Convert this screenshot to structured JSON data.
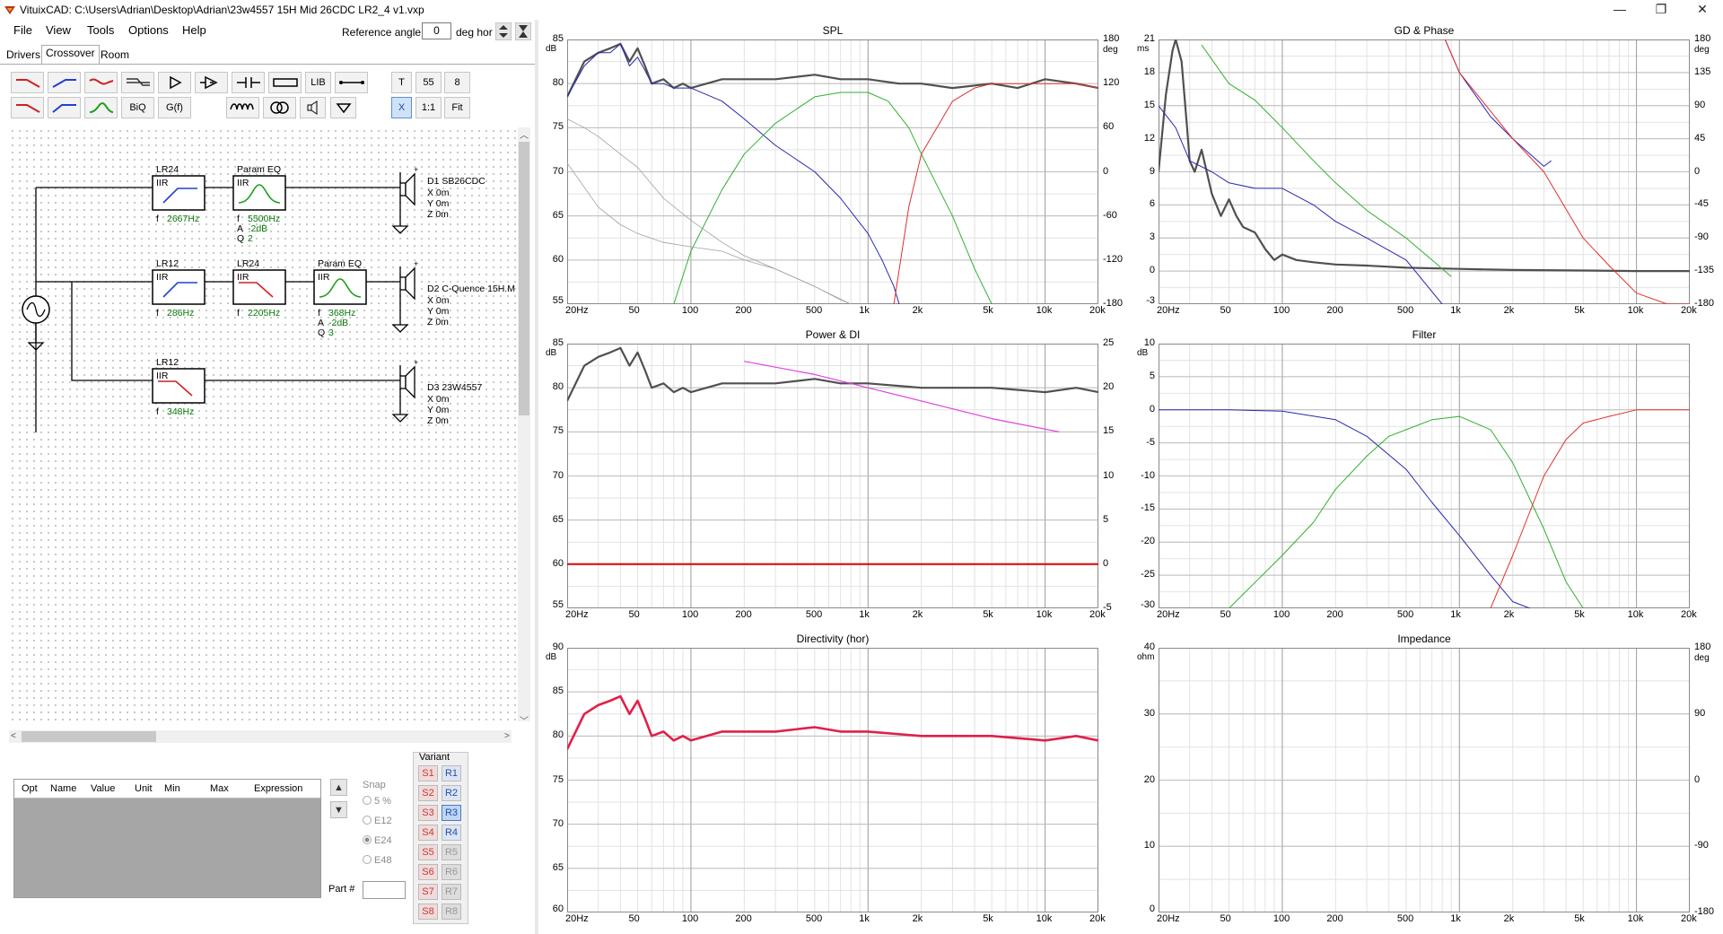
{
  "window": {
    "title": "VituixCAD: C:\\Users\\Adrian\\Desktop\\Adrian\\23w4557 15H Mid 26CDC LR2_4 v1.vxp",
    "minimize": "—",
    "maximize": "❐",
    "close": "✕"
  },
  "menu": [
    "File",
    "View",
    "Tools",
    "Options",
    "Help"
  ],
  "reference": {
    "label": "Reference angle",
    "value": "0",
    "unit": "deg hor"
  },
  "tabs": [
    "Drivers",
    "Crossover",
    "Room"
  ],
  "toolbar": {
    "lib": "LIB",
    "t": "T",
    "n55": "55",
    "n8": "8",
    "biq": "BiQ",
    "gf": "G(f)",
    "x": "X",
    "one": "1:1",
    "fit": "Fit"
  },
  "schematic": {
    "blocks": [
      {
        "title": "LR24",
        "tag": "IIR",
        "params": [
          [
            "f",
            "2667Hz"
          ]
        ]
      },
      {
        "title": "Param EQ",
        "tag": "IIR",
        "params": [
          [
            "f",
            "5500Hz"
          ],
          [
            "A",
            "-2dB"
          ],
          [
            "Q",
            "2"
          ]
        ]
      },
      {
        "title": "LR12",
        "tag": "IIR",
        "params": [
          [
            "f",
            "286Hz"
          ]
        ]
      },
      {
        "title": "LR24",
        "tag": "IIR",
        "params": [
          [
            "f",
            "2205Hz"
          ]
        ]
      },
      {
        "title": "Param EQ",
        "tag": "IIR",
        "params": [
          [
            "f",
            "368Hz"
          ],
          [
            "A",
            "-2dB"
          ],
          [
            "Q",
            "3"
          ]
        ]
      },
      {
        "title": "LR12",
        "tag": "IIR",
        "params": [
          [
            "f",
            "348Hz"
          ]
        ]
      }
    ],
    "drivers": [
      {
        "name": "D1 SB26CDC",
        "x": "X 0m",
        "y": "Y 0m",
        "z": "Z 0m"
      },
      {
        "name": "D2 C-Quence 15H.M",
        "x": "X 0m",
        "y": "Y 0m",
        "z": "Z 0m"
      },
      {
        "name": "D3 23W4557",
        "x": "X 0m",
        "y": "Y 0m",
        "z": "Z 0m"
      }
    ]
  },
  "opt_table": {
    "headers": [
      "Opt",
      "Name",
      "Value",
      "Unit",
      "Min",
      "Max",
      "Expression"
    ]
  },
  "snap": {
    "label": "Snap",
    "options": [
      "5 %",
      "E12",
      "E24",
      "E48"
    ],
    "selected": "E24"
  },
  "part": {
    "label": "Part #"
  },
  "variant": {
    "label": "Variant",
    "s": [
      "S1",
      "S2",
      "S3",
      "S4",
      "S5",
      "S6",
      "S7",
      "S8"
    ],
    "r": [
      "R1",
      "R2",
      "R3",
      "R4",
      "R5",
      "R6",
      "R7",
      "R8"
    ],
    "r_selected": "R3"
  },
  "colors": {
    "tweeter": "#e03030",
    "mid": "#30b030",
    "woofer": "#2828b0",
    "total": "#505050",
    "offaxis": "#a0a0a0",
    "di": "#e040e0",
    "power_di_flat": "#e00000",
    "directivity": "#e0204a"
  },
  "freq_ticks": [
    "20Hz",
    "50",
    "100",
    "200",
    "500",
    "1k",
    "2k",
    "5k",
    "10k",
    "20k"
  ],
  "chart_data": [
    {
      "type": "line",
      "title": "SPL",
      "xlabel": "",
      "ylabel": "dB",
      "y2label": "deg",
      "xscale": "log",
      "xlim": [
        20,
        20000
      ],
      "ylim": [
        55,
        85
      ],
      "y2lim": [
        -180,
        180
      ],
      "yticks": [
        "85",
        "80",
        "75",
        "70",
        "65",
        "60",
        "55"
      ],
      "y2ticks": [
        "180",
        "120",
        "60",
        "0",
        "-60",
        "-120",
        "-180"
      ],
      "series": [
        {
          "x": [
            20,
            25,
            30,
            35,
            40,
            45,
            50,
            55,
            60,
            70,
            80,
            90,
            100,
            150,
            200,
            300,
            500,
            700,
            1000,
            1500,
            2000,
            3000,
            5000,
            7000,
            10000,
            15000,
            20000
          ],
          "y": [
            78.5,
            82.5,
            83.5,
            84,
            84.5,
            82.5,
            84,
            82,
            80,
            80.5,
            79.5,
            80,
            79.5,
            80.5,
            80.5,
            80.5,
            81,
            80.5,
            80.5,
            80,
            80,
            79.5,
            80,
            79.5,
            80.5,
            80,
            79.5
          ]
        },
        {
          "x": [
            20,
            25,
            30,
            35,
            40,
            45,
            50,
            55,
            60,
            70,
            80,
            100,
            150,
            200,
            300,
            500,
            700,
            1000,
            1200,
            1400,
            1500
          ],
          "y": [
            78.5,
            82,
            83.5,
            83.5,
            84.5,
            82,
            83,
            81.5,
            80,
            80,
            79.5,
            79.5,
            78,
            76,
            73,
            70,
            67,
            63,
            60,
            57,
            55
          ]
        },
        {
          "x": [
            80,
            100,
            150,
            200,
            300,
            500,
            700,
            1000,
            1300,
            1700,
            2000,
            3000,
            4000,
            5000
          ],
          "y": [
            55,
            61,
            68,
            72,
            75.5,
            78.5,
            79,
            79,
            78,
            75,
            72,
            65,
            59,
            55
          ]
        },
        {
          "x": [
            1400,
            1700,
            2000,
            3000,
            4000,
            5000,
            7000,
            10000,
            15000,
            20000
          ],
          "y": [
            55,
            66,
            72,
            78,
            79.5,
            80,
            80,
            80,
            80,
            79.5
          ]
        },
        {
          "x": [
            20,
            25,
            30,
            40,
            50,
            70,
            100,
            150,
            200,
            300,
            500,
            700,
            800
          ],
          "y": [
            76,
            75,
            74,
            72,
            70.5,
            67,
            64.5,
            62,
            60.5,
            59,
            57,
            55.5,
            55
          ]
        },
        {
          "x": [
            20,
            30,
            40,
            50,
            70,
            100,
            150,
            200,
            300,
            500,
            800
          ],
          "y": [
            71,
            66,
            64,
            63,
            62,
            61.5,
            61,
            60,
            59,
            57,
            55
          ]
        }
      ]
    },
    {
      "type": "line",
      "title": "GD & Phase",
      "xlabel": "",
      "ylabel": "ms",
      "y2label": "deg",
      "xscale": "log",
      "xlim": [
        20,
        20000
      ],
      "ylim": [
        -3,
        21
      ],
      "y2lim": [
        -180,
        180
      ],
      "yticks": [
        "21",
        "18",
        "15",
        "12",
        "9",
        "6",
        "3",
        "0",
        "-3"
      ],
      "y2ticks": [
        "180",
        "135",
        "90",
        "45",
        "0",
        "-45",
        "-90",
        "-135",
        "-180"
      ],
      "series": [
        {
          "x": [
            20,
            22,
            24,
            25,
            27,
            29,
            30,
            32,
            35,
            40,
            45,
            50,
            55,
            60,
            70,
            80,
            90,
            100,
            120,
            150,
            200,
            300,
            500,
            1000,
            2000,
            5000,
            10000,
            20000
          ],
          "y": [
            9,
            16,
            20,
            21,
            19,
            13,
            10,
            9,
            11,
            7,
            5,
            6.5,
            5,
            4,
            3.5,
            2,
            1,
            1.5,
            1,
            0.8,
            0.6,
            0.5,
            0.3,
            0.2,
            0.1,
            0.05,
            0,
            0
          ]
        },
        {
          "x": [
            20,
            25,
            30,
            40,
            50,
            70,
            100,
            150,
            200,
            300,
            500,
            800
          ],
          "y": [
            15,
            13,
            10,
            9,
            8,
            7.5,
            7.5,
            6,
            4.5,
            3,
            1,
            -3
          ]
        },
        {
          "x": [
            35,
            50,
            70,
            100,
            150,
            200,
            300,
            500,
            700,
            900
          ],
          "y": [
            20.5,
            17,
            15.5,
            13,
            10,
            8,
            5.5,
            3,
            1,
            -0.5
          ]
        },
        {
          "x": [
            830,
            1000,
            1500,
            2000,
            3000,
            3300
          ],
          "y": [
            21,
            18,
            14,
            12,
            9.5,
            10
          ]
        },
        {
          "x": [
            830,
            1000,
            2000,
            3000,
            5000,
            7000,
            10000,
            15000,
            20000
          ],
          "y": [
            21,
            18,
            12,
            9,
            3,
            0.5,
            -2,
            -3,
            -3
          ]
        }
      ]
    },
    {
      "type": "line",
      "title": "Power & DI",
      "xlabel": "",
      "ylabel": "dB",
      "y2label": "",
      "xscale": "log",
      "xlim": [
        20,
        20000
      ],
      "ylim": [
        55,
        85
      ],
      "y2lim": [
        -5,
        25
      ],
      "yticks": [
        "85",
        "80",
        "75",
        "70",
        "65",
        "60",
        "55"
      ],
      "y2ticks": [
        "25",
        "20",
        "15",
        "10",
        "5",
        "0",
        "-5"
      ],
      "series": [
        {
          "x": [
            20,
            25,
            30,
            35,
            40,
            45,
            50,
            55,
            60,
            70,
            80,
            90,
            100,
            150,
            200,
            300,
            500,
            700,
            1000,
            2000,
            5000,
            10000,
            15000,
            20000
          ],
          "y": [
            78.5,
            82.5,
            83.5,
            84,
            84.5,
            82.5,
            84,
            82,
            80,
            80.5,
            79.5,
            80,
            79.5,
            80.5,
            80.5,
            80.5,
            81,
            80.5,
            80.5,
            80,
            80,
            79.5,
            80,
            79.5
          ]
        },
        {
          "x": [
            200,
            500,
            1000,
            2000,
            5000,
            12000
          ],
          "y": [
            83,
            81.5,
            80,
            78.5,
            76.5,
            75
          ]
        },
        {
          "x": [
            20,
            20000
          ],
          "y": [
            60,
            60
          ]
        }
      ]
    },
    {
      "type": "line",
      "title": "Filter",
      "xlabel": "",
      "ylabel": "dB",
      "xscale": "log",
      "xlim": [
        20,
        20000
      ],
      "ylim": [
        -30,
        10
      ],
      "yticks": [
        "10",
        "5",
        "0",
        "-5",
        "-10",
        "-15",
        "-20",
        "-25",
        "-30"
      ],
      "series": [
        {
          "x": [
            20,
            50,
            100,
            200,
            300,
            500,
            700,
            1000,
            1500,
            2000,
            2500
          ],
          "y": [
            0,
            0,
            -0.2,
            -1.5,
            -4,
            -9,
            -14,
            -19,
            -25,
            -29,
            -30
          ]
        },
        {
          "x": [
            50,
            100,
            150,
            200,
            300,
            400,
            500,
            700,
            1000,
            1500,
            2000,
            3000,
            4000,
            5000
          ],
          "y": [
            -30,
            -22,
            -17,
            -12,
            -7,
            -4,
            -3,
            -1.5,
            -1,
            -3,
            -8,
            -18,
            -26,
            -30
          ]
        },
        {
          "x": [
            1500,
            2000,
            3000,
            4000,
            5000,
            7000,
            10000,
            15000,
            20000
          ],
          "y": [
            -30,
            -22,
            -10,
            -4.5,
            -2,
            -1,
            0,
            0,
            0
          ]
        }
      ]
    },
    {
      "type": "line",
      "title": "Directivity (hor)",
      "xlabel": "",
      "ylabel": "dB",
      "xscale": "log",
      "xlim": [
        20,
        20000
      ],
      "ylim": [
        60,
        90
      ],
      "yticks": [
        "90",
        "85",
        "80",
        "75",
        "70",
        "65",
        "60"
      ],
      "series": [
        {
          "x": [
            20,
            25,
            30,
            35,
            40,
            45,
            50,
            55,
            60,
            70,
            80,
            90,
            100,
            150,
            200,
            300,
            500,
            700,
            1000,
            2000,
            5000,
            10000,
            15000,
            20000
          ],
          "y": [
            78.5,
            82.5,
            83.5,
            84,
            84.5,
            82.5,
            84,
            82,
            80,
            80.5,
            79.5,
            80,
            79.5,
            80.5,
            80.5,
            80.5,
            81,
            80.5,
            80.5,
            80,
            80,
            79.5,
            80,
            79.5
          ]
        }
      ]
    },
    {
      "type": "line",
      "title": "Impedance",
      "xlabel": "",
      "ylabel": "ohm",
      "y2label": "deg",
      "xscale": "log",
      "xlim": [
        20,
        20000
      ],
      "ylim": [
        0,
        40
      ],
      "y2lim": [
        -180,
        180
      ],
      "yticks": [
        "40",
        "30",
        "20",
        "10",
        "0"
      ],
      "y2ticks": [
        "180",
        "90",
        "0",
        "-90",
        "-180"
      ],
      "series": []
    }
  ]
}
